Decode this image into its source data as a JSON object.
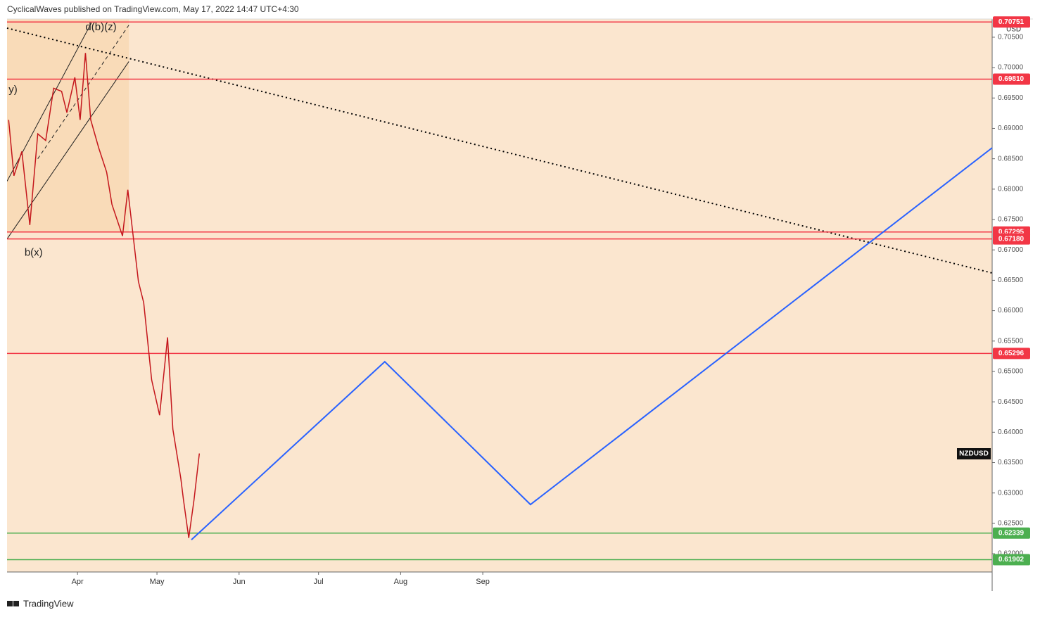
{
  "header": {
    "text": "CyclicalWaves published on TradingView.com, May 17, 2022 14:47 UTC+4:30"
  },
  "footer": {
    "brand": "TradingView"
  },
  "chart_data": {
    "type": "line",
    "symbol": "NZDUSD",
    "currency": "USD",
    "x": [
      65,
      67,
      70,
      73,
      76,
      79,
      82,
      85,
      87,
      90,
      92,
      94,
      96,
      99,
      102,
      104,
      108,
      110,
      114,
      116,
      119,
      122,
      125,
      127,
      130,
      131,
      133,
      135,
      137
    ],
    "series": [
      {
        "color": "#c4161c",
        "values": [
          0.6914,
          0.6822,
          0.6862,
          0.6741,
          0.6891,
          0.688,
          0.6966,
          0.6961,
          0.6926,
          0.6984,
          0.6914,
          0.7024,
          0.6914,
          0.6868,
          0.6828,
          0.6775,
          0.6723,
          0.6799,
          0.6648,
          0.6613,
          0.6486,
          0.6428,
          0.6556,
          0.6405,
          0.6324,
          0.6289,
          0.6226,
          0.6289,
          0.6365
        ]
      }
    ],
    "xlim": [
      64.4,
      436.3
    ],
    "ylim": [
      0.617,
      0.708
    ],
    "xticks": [
      {
        "value": 91,
        "label": "Apr"
      },
      {
        "value": 121,
        "label": "May"
      },
      {
        "value": 152,
        "label": "Jun"
      },
      {
        "value": 182,
        "label": "Jul"
      },
      {
        "value": 213,
        "label": "Aug"
      },
      {
        "value": 244,
        "label": "Sep"
      }
    ],
    "yticks": [
      {
        "value": 0.62,
        "label": "0.62000"
      },
      {
        "value": 0.625,
        "label": "0.62500"
      },
      {
        "value": 0.63,
        "label": "0.63000"
      },
      {
        "value": 0.635,
        "label": "0.63500"
      },
      {
        "value": 0.64,
        "label": "0.64000"
      },
      {
        "value": 0.645,
        "label": "0.64500"
      },
      {
        "value": 0.65,
        "label": "0.65000"
      },
      {
        "value": 0.655,
        "label": "0.65500"
      },
      {
        "value": 0.66,
        "label": "0.66000"
      },
      {
        "value": 0.665,
        "label": "0.66500"
      },
      {
        "value": 0.67,
        "label": "0.67000"
      },
      {
        "value": 0.675,
        "label": "0.67500"
      },
      {
        "value": 0.68,
        "label": "0.68000"
      },
      {
        "value": 0.685,
        "label": "0.68500"
      },
      {
        "value": 0.69,
        "label": "0.69000"
      },
      {
        "value": 0.695,
        "label": "0.69500"
      },
      {
        "value": 0.7,
        "label": "0.70000"
      },
      {
        "value": 0.705,
        "label": "0.70500"
      }
    ],
    "levels": {
      "values": [
        0.70751,
        0.6981,
        0.67295,
        0.6718,
        0.65296,
        0.62339,
        0.61902
      ],
      "value_labels": [
        "0.70751",
        "0.69810",
        "0.67295",
        "0.67180",
        "0.65296",
        "0.62339",
        "0.61902"
      ],
      "colors": [
        "#f23645",
        "#f23645",
        "#f23645",
        "#f23645",
        "#f23645",
        "#4caf50",
        "#4caf50"
      ]
    },
    "projection": {
      "color": "#2962ff",
      "x": [
        134,
        207,
        262,
        436.3
      ],
      "values": [
        0.6223,
        0.6516,
        0.6281,
        0.6868
      ]
    },
    "trendline": {
      "color": "#000000",
      "x": [
        64.4,
        436.3
      ],
      "values": [
        0.7065,
        0.6662
      ]
    },
    "channel": [
      {
        "x": [
          64.4,
          110.4
        ],
        "values": [
          0.6718,
          0.701
        ]
      },
      {
        "x": [
          64.4,
          96.3
        ],
        "values": [
          0.6813,
          0.7074
        ]
      },
      {
        "x": [
          76,
          110.4
        ],
        "values": [
          0.685,
          0.707
        ]
      }
    ],
    "zone": {
      "x": [
        64.4,
        110.4
      ],
      "values": [
        0.6729,
        0.708
      ],
      "color": "#f9d4a8"
    },
    "annotations": [
      {
        "text": "y)",
        "x": 65,
        "y": 0.6963
      },
      {
        "text": "d(b)(z)",
        "x": 94,
        "y": 0.7066
      },
      {
        "text": "b(x)",
        "x": 71,
        "y": 0.6695
      }
    ]
  }
}
